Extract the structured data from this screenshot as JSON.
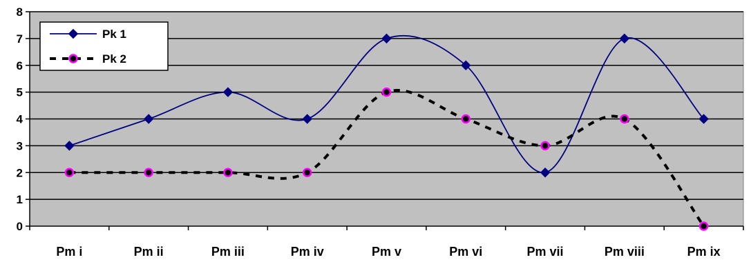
{
  "chart_data": {
    "type": "line",
    "title": "",
    "xlabel": "",
    "ylabel": "",
    "categories": [
      "Pm i",
      "Pm ii",
      "Pm iii",
      "Pm iv",
      "Pm v",
      "Pm vi",
      "Pm vii",
      "Pm viii",
      "Pm ix"
    ],
    "ylim": [
      0,
      8
    ],
    "yticks": [
      0,
      1,
      2,
      3,
      4,
      5,
      6,
      7,
      8
    ],
    "grid": true,
    "smoothed": true,
    "plot_background": "#c0c0c0",
    "legend_position": "top-left",
    "series": [
      {
        "name": "Pk 1",
        "values": [
          3,
          4,
          5,
          4,
          7,
          6,
          2,
          7,
          4
        ],
        "color": "#000080",
        "line_style": "solid",
        "marker": "diamond",
        "marker_fill": "#000080"
      },
      {
        "name": "Pk 2",
        "values": [
          2,
          2,
          2,
          2,
          5,
          4,
          3,
          4,
          0
        ],
        "color": "#000000",
        "line_style": "dashed",
        "marker": "circle",
        "marker_fill": "#000000",
        "marker_edge": "#ff00ff"
      }
    ]
  }
}
